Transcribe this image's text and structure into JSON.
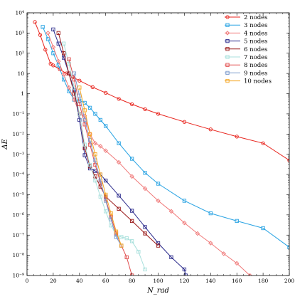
{
  "chart_data": {
    "type": "line",
    "xlabel": "N_rad",
    "ylabel": "ΔE",
    "xlim": [
      0,
      200
    ],
    "ylim": [
      1e-09,
      10000.0
    ],
    "yscale": "log",
    "grid": false,
    "legend_position": "top-right",
    "xticks": [
      "0",
      "20",
      "40",
      "60",
      "80",
      "100",
      "120",
      "140",
      "160",
      "180",
      "200"
    ],
    "yticks": [
      {
        "value": 1e-09,
        "label": "10⁻⁹"
      },
      {
        "value": 1e-08,
        "label": "10⁻⁸"
      },
      {
        "value": 1e-07,
        "label": "10⁻⁷"
      },
      {
        "value": 1e-06,
        "label": "10⁻⁶"
      },
      {
        "value": 1e-05,
        "label": "10⁻⁵"
      },
      {
        "value": 0.0001,
        "label": "10⁻⁴"
      },
      {
        "value": 0.001,
        "label": "10⁻³"
      },
      {
        "value": 0.01,
        "label": "10⁻²"
      },
      {
        "value": 0.1,
        "label": "10⁻¹"
      },
      {
        "value": 1,
        "label": "1"
      },
      {
        "value": 10,
        "label": "10"
      },
      {
        "value": 100,
        "label": "10²"
      },
      {
        "value": 1000,
        "label": "10³"
      },
      {
        "value": 10000,
        "label": "10⁴"
      }
    ],
    "series": [
      {
        "name": "2 nodes",
        "color": "#e8231c",
        "marker": "circle",
        "x": [
          6,
          10,
          14,
          18,
          20,
          25,
          30,
          35,
          40,
          50,
          60,
          70,
          80,
          90,
          100,
          120,
          140,
          160,
          180,
          200
        ],
        "y": [
          3500,
          800,
          150,
          30,
          25,
          16,
          10,
          6.5,
          4.4,
          2.1,
          1.1,
          0.55,
          0.3,
          0.17,
          0.1,
          0.04,
          0.017,
          0.0075,
          0.0035,
          0.0005
        ]
      },
      {
        "name": "3 nodes",
        "color": "#29a3e3",
        "marker": "square",
        "x": [
          12,
          16,
          20,
          24,
          28,
          32,
          36,
          40,
          44,
          48,
          52,
          56,
          60,
          70,
          80,
          90,
          100,
          120,
          140,
          160,
          180,
          200
        ],
        "y": [
          2000,
          500,
          100,
          25,
          5,
          1.3,
          0.5,
          0.45,
          0.35,
          0.2,
          0.1,
          0.05,
          0.025,
          0.0035,
          0.0006,
          0.00012,
          3.5e-05,
          5e-06,
          1.2e-06,
          5e-07,
          2.2e-07,
          2.5e-08
        ]
      },
      {
        "name": "4 nodes",
        "color": "#f07878",
        "marker": "diamond",
        "x": [
          16,
          20,
          24,
          28,
          32,
          36,
          40,
          44,
          48,
          52,
          56,
          60,
          70,
          80,
          90,
          100,
          110,
          120,
          130,
          140,
          150,
          160,
          170
        ],
        "y": [
          1000,
          200,
          40,
          9,
          2,
          0.5,
          0.1,
          0.08,
          0.01,
          0.0035,
          0.0025,
          0.0015,
          0.0004,
          8e-05,
          2e-05,
          5e-06,
          1.5e-06,
          4e-07,
          1.2e-07,
          4e-08,
          1.2e-08,
          4e-09,
          1e-09
        ]
      },
      {
        "name": "5 nodes",
        "color": "#2b2b8c",
        "marker": "square",
        "x": [
          20,
          24,
          28,
          32,
          36,
          40,
          44,
          48,
          52,
          56,
          60,
          70,
          80,
          90,
          100,
          110,
          120,
          121
        ],
        "y": [
          1500,
          300,
          60,
          10,
          1.5,
          0.05,
          0.0009,
          0.0002,
          0.00015,
          0.0001,
          5e-05,
          9e-06,
          1.6e-06,
          2.5e-07,
          4e-08,
          8e-09,
          2e-09,
          1e-09
        ]
      },
      {
        "name": "6 nodes",
        "color": "#9a1a1a",
        "marker": "square",
        "x": [
          24,
          28,
          32,
          36,
          40,
          44,
          48,
          52,
          56,
          60,
          70,
          80,
          90,
          100
        ],
        "y": [
          1000,
          100,
          10,
          1,
          0.1,
          0.002,
          0.00025,
          8e-05,
          2.5e-05,
          8e-06,
          2e-06,
          5e-07,
          1.2e-07,
          3e-08
        ]
      },
      {
        "name": "7 nodes",
        "color": "#a8e0dc",
        "marker": "square",
        "x": [
          28,
          32,
          36,
          40,
          44,
          48,
          52,
          56,
          60,
          64,
          68,
          72,
          76,
          80,
          85,
          90
        ],
        "y": [
          300,
          30,
          2,
          0.1,
          0.003,
          0.0003,
          5e-05,
          8e-06,
          1.5e-06,
          3e-07,
          1e-07,
          8e-08,
          7e-08,
          5e-08,
          1.5e-08,
          2e-09
        ]
      },
      {
        "name": "8 nodes",
        "color": "#e14d4d",
        "marker": "square",
        "x": [
          32,
          36,
          40,
          44,
          48,
          52,
          56,
          60,
          64,
          68,
          72,
          76,
          80
        ],
        "y": [
          50,
          5,
          0.3,
          0.03,
          0.003,
          0.0003,
          4e-05,
          6e-06,
          8e-07,
          1.2e-07,
          3e-08,
          8e-09,
          1e-09
        ]
      },
      {
        "name": "9 nodes",
        "color": "#7a99cc",
        "marker": "square",
        "x": [
          36,
          40,
          44,
          48,
          52,
          56,
          60,
          64,
          68,
          72
        ],
        "y": [
          10,
          0.8,
          0.05,
          0.005,
          0.0005,
          5e-05,
          5e-06,
          6e-07,
          8e-08,
          3e-08
        ]
      },
      {
        "name": "10 nodes",
        "color": "#f5a623",
        "marker": "square",
        "x": [
          40,
          44,
          48,
          52,
          56,
          60,
          64,
          68,
          72
        ],
        "y": [
          2,
          0.15,
          0.01,
          0.001,
          0.0001,
          1e-05,
          1.2e-06,
          1.5e-07,
          3e-08
        ]
      }
    ]
  }
}
